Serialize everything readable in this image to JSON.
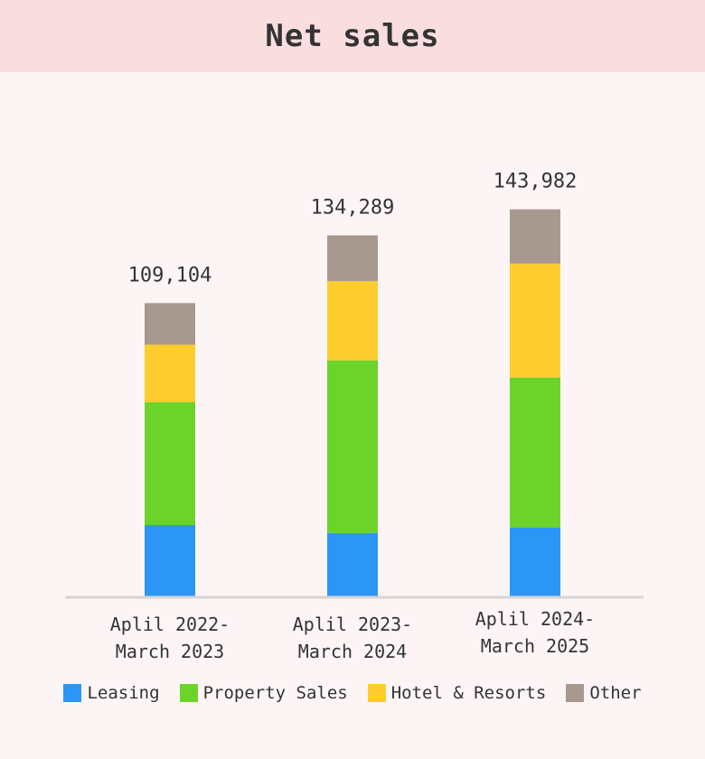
{
  "chart_data": {
    "type": "stacked_bar",
    "title": "Net sales",
    "categories": [
      "Aplil 2022-\nMarch 2023",
      "Aplil 2023-\nMarch 2024",
      "Aplil 2024-\nMarch 2025"
    ],
    "series": [
      {
        "name": "Leasing",
        "color": "#2b96f5",
        "values": [
          26540,
          23582,
          25567
        ]
      },
      {
        "name": "Property Sales",
        "color": "#6cd32b",
        "values": [
          45700,
          64195,
          55842
        ]
      },
      {
        "name": "Hotel & Resorts",
        "color": "#ffcc2e",
        "values": [
          21380,
          29478,
          42387
        ]
      },
      {
        "name": "Other",
        "color": "#a8998f",
        "values": [
          15484,
          17034,
          20186
        ]
      }
    ],
    "totals": [
      109104,
      134289,
      143982
    ],
    "total_labels": [
      "109,104",
      "134,289",
      "143,982"
    ],
    "ylim": [
      0,
      160000
    ],
    "legend": "bottom"
  }
}
